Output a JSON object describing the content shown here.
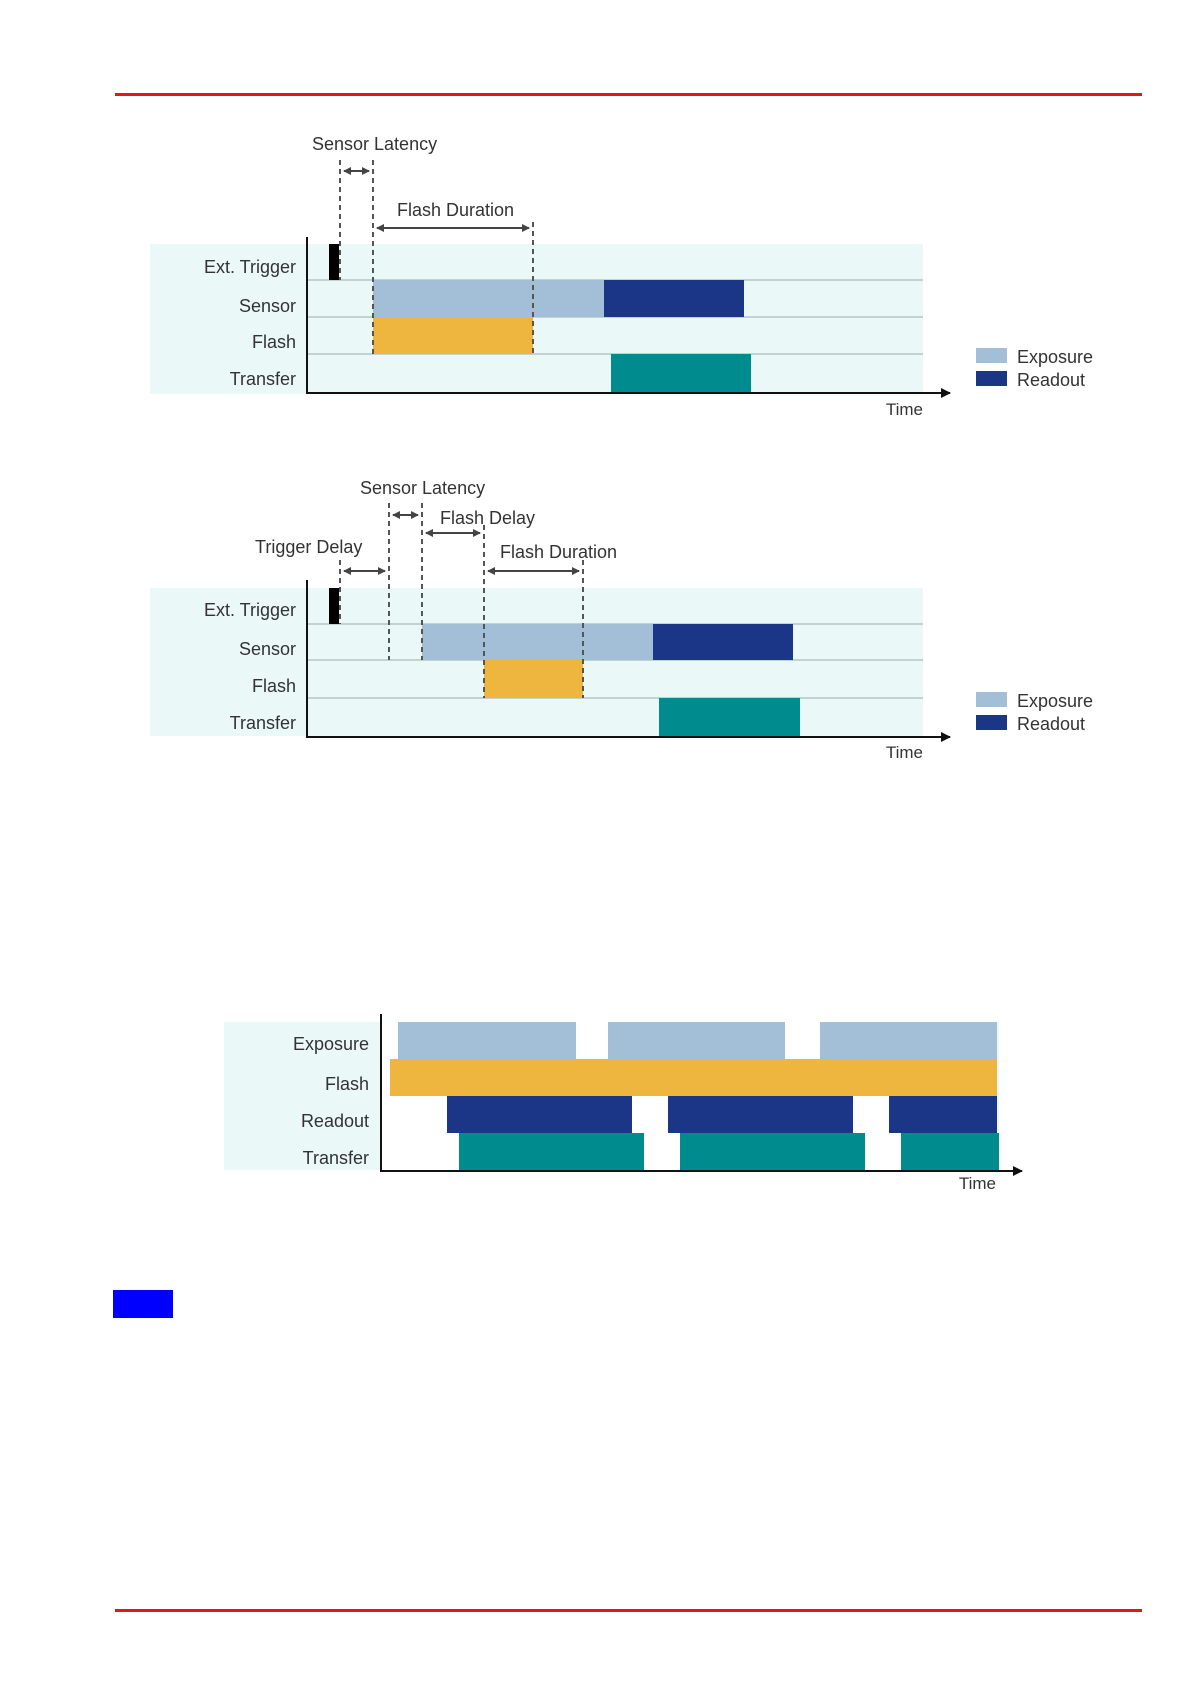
{
  "colors": {
    "rule": "#e3171b",
    "row_bg": "#eaf8f8",
    "exposure": "#a3bfd8",
    "readout": "#1b3587",
    "flash": "#eeb63e",
    "transfer": "#008b8f",
    "trigger": "#000000",
    "marker": "#0000ff"
  },
  "diagram1": {
    "sensor_latency": "Sensor Latency",
    "flash_duration": "Flash Duration",
    "rows": [
      "Ext. Trigger",
      "Sensor",
      "Flash",
      "Transfer"
    ],
    "time": "Time",
    "legend": [
      "Exposure",
      "Readout"
    ]
  },
  "diagram2": {
    "sensor_latency": "Sensor Latency",
    "flash_delay": "Flash Delay",
    "trigger_delay": "Trigger Delay",
    "flash_duration": "Flash Duration",
    "rows": [
      "Ext. Trigger",
      "Sensor",
      "Flash",
      "Transfer"
    ],
    "time": "Time",
    "legend": [
      "Exposure",
      "Readout"
    ]
  },
  "diagram3": {
    "rows": [
      "Exposure",
      "Flash",
      "Readout",
      "Transfer"
    ],
    "time": "Time"
  }
}
